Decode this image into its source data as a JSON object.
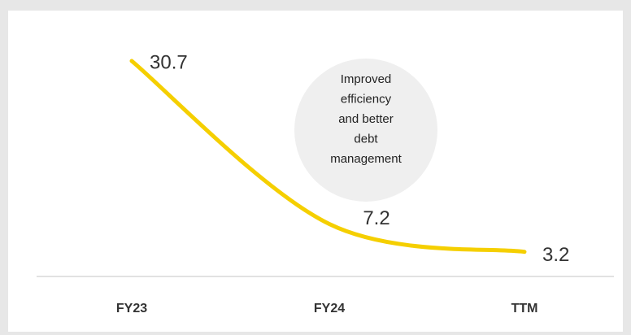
{
  "chart_data": {
    "type": "line",
    "categories": [
      "FY23",
      "FY24",
      "TTM"
    ],
    "values": [
      30.7,
      7.2,
      3.2
    ],
    "color": "#f5cf00",
    "annotation": [
      "Improved",
      "efficiency",
      "and better",
      "debt",
      "management"
    ]
  }
}
